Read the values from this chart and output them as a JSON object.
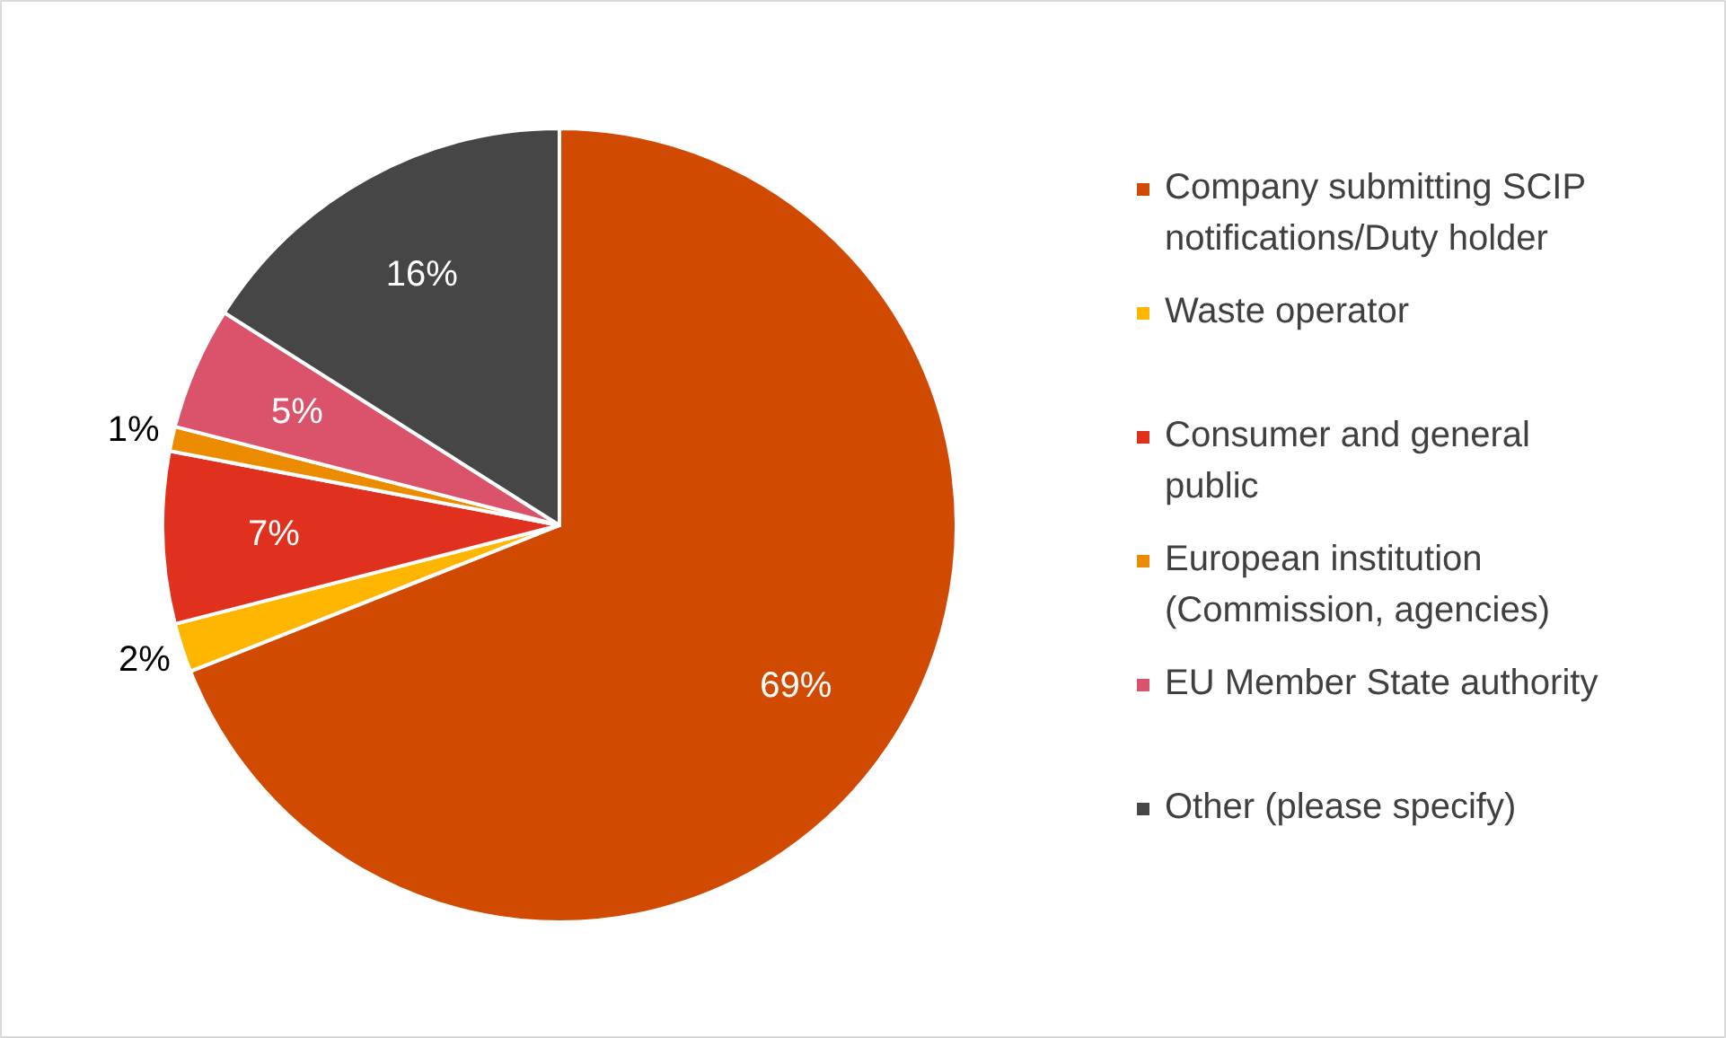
{
  "chart_data": {
    "type": "pie",
    "categories": [
      "Company submitting SCIP notifications/Duty holder",
      "Waste operator",
      "Consumer and general public",
      "European institution (Commission, agencies)",
      "EU Member State authority",
      "Other (please specify)"
    ],
    "values": [
      69,
      2,
      7,
      1,
      5,
      16
    ],
    "value_labels": [
      "69%",
      "2%",
      "7%",
      "1%",
      "5%",
      "16%"
    ],
    "colors": [
      "#d04a02",
      "#ffb600",
      "#e0301e",
      "#eb8c00",
      "#db536a",
      "#464646"
    ],
    "legend": "right"
  }
}
